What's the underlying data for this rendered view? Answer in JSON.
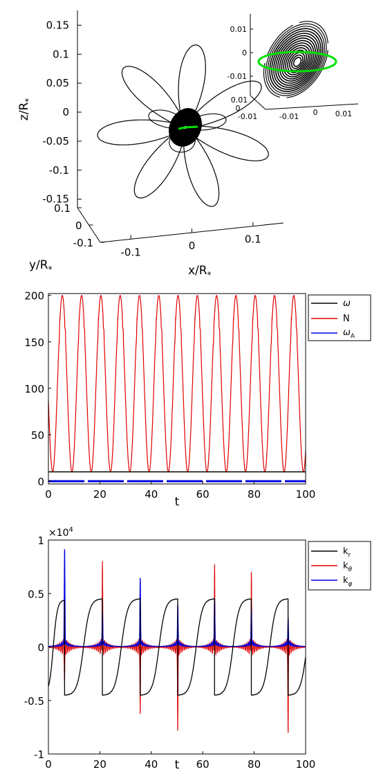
{
  "chart_data": [
    {
      "type": "line",
      "subtype": "3d-trajectory",
      "xlabel": "x/R",
      "ylabel": "y/R",
      "zlabel": "z/R",
      "label_subscript": "*",
      "x_ticks": [
        -0.1,
        0,
        0.1
      ],
      "y_ticks": [
        -0.1,
        0,
        0.1
      ],
      "z_ticks": [
        0.15,
        0.1,
        0.05,
        0,
        -0.05,
        -0.1,
        -0.15
      ],
      "zlim": [
        -0.16,
        0.16
      ],
      "series": [
        {
          "color": "#000000",
          "petals": 7
        },
        {
          "color": "#00e000"
        }
      ],
      "inset": {
        "tick_values": [
          0.01,
          0,
          -0.01
        ],
        "base_tick_values": [
          0.01,
          0,
          -0.01,
          -0.01,
          0,
          0.01
        ]
      }
    },
    {
      "type": "line",
      "xlabel": "t",
      "xlim": [
        0,
        100
      ],
      "ylim": [
        0,
        200
      ],
      "x_ticks": [
        0,
        20,
        40,
        60,
        80,
        100
      ],
      "y_ticks": [
        0,
        50,
        100,
        150,
        200
      ],
      "legend_position": "outside-top-right",
      "series": [
        {
          "legend": "ω",
          "color": "#000000",
          "constant": 10
        },
        {
          "legend": "N",
          "color": "#e00000",
          "min": 10,
          "max": 200,
          "period": 7.5,
          "shoulder": 160
        },
        {
          "legend": "ω",
          "legend_sub": "A",
          "color": "#0000e0",
          "constant": 0
        }
      ]
    },
    {
      "type": "line",
      "xlabel": "t",
      "exponent_label": "×10",
      "exponent_power": "4",
      "xlim": [
        0,
        100
      ],
      "ylim": [
        -1,
        1
      ],
      "x_ticks": [
        0,
        20,
        40,
        60,
        80,
        100
      ],
      "y_ticks": [
        1,
        0.5,
        0,
        -0.5,
        -1
      ],
      "legend_position": "outside-top-right",
      "series": [
        {
          "legend": "k",
          "legend_sub": "r",
          "color": "#000000",
          "period": 14.6,
          "amplitude": 0.45
        },
        {
          "legend": "k",
          "legend_sub": "θ",
          "color": "#e00000",
          "spikes": [
            [
              6.3,
              -0.32
            ],
            [
              21.0,
              0.8
            ],
            [
              35.7,
              -0.62
            ],
            [
              50.3,
              -0.78
            ],
            [
              64.6,
              0.77
            ],
            [
              78.9,
              0.7
            ],
            [
              93.2,
              -0.8
            ]
          ]
        },
        {
          "legend": "k",
          "legend_sub": "φ",
          "color": "#0000e0",
          "spikes": [
            [
              6.3,
              0.84
            ],
            [
              21.0,
              0.26
            ],
            [
              35.7,
              0.57
            ],
            [
              50.3,
              0.32
            ],
            [
              64.6,
              0.38
            ],
            [
              78.9,
              0.28
            ],
            [
              93.2,
              0.2
            ]
          ]
        }
      ]
    }
  ]
}
